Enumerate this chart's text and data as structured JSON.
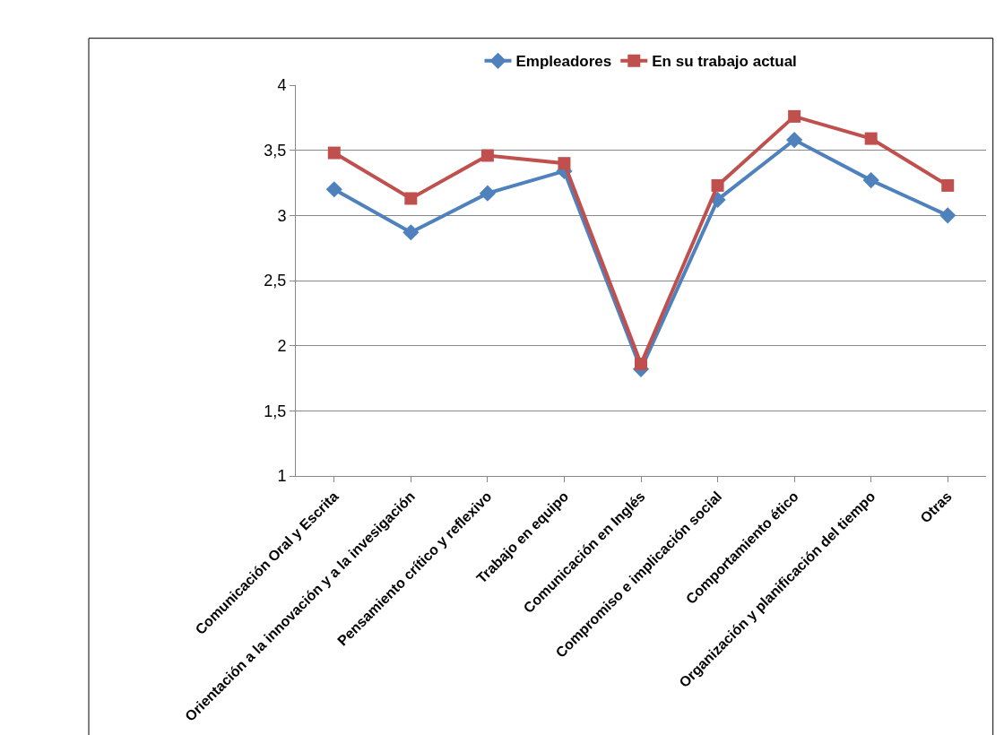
{
  "chart_data": {
    "type": "line",
    "categories": [
      "Comunicación Oral y Escrita",
      "Orientación a la innovación y a la invesigación",
      "Pensamiento crítico y reflexivo",
      "Trabajo en equipo",
      "Comunicación en Inglés",
      "Compromiso e implicación social",
      "Comportamiento ético",
      "Organización y planificación del tiempo",
      "Otras"
    ],
    "series": [
      {
        "name": "Empleadores",
        "color": "#4f81bd",
        "marker": "diamond",
        "values": [
          3.2,
          2.87,
          3.17,
          3.34,
          1.82,
          3.12,
          3.58,
          3.27,
          3.0
        ]
      },
      {
        "name": "En su trabajo actual",
        "color": "#c0504d",
        "marker": "square",
        "values": [
          3.48,
          3.13,
          3.46,
          3.4,
          1.86,
          3.23,
          3.76,
          3.59,
          3.23
        ]
      }
    ],
    "ylim": [
      1,
      4
    ],
    "yticks": [
      {
        "value": 1,
        "label": "1"
      },
      {
        "value": 1.5,
        "label": "1,5"
      },
      {
        "value": 2,
        "label": "2"
      },
      {
        "value": 2.5,
        "label": "2,5"
      },
      {
        "value": 3,
        "label": "3"
      },
      {
        "value": 3.5,
        "label": "3,5"
      },
      {
        "value": 4,
        "label": "4"
      }
    ],
    "grid": "y",
    "legend": "top",
    "line_style": "solid"
  }
}
